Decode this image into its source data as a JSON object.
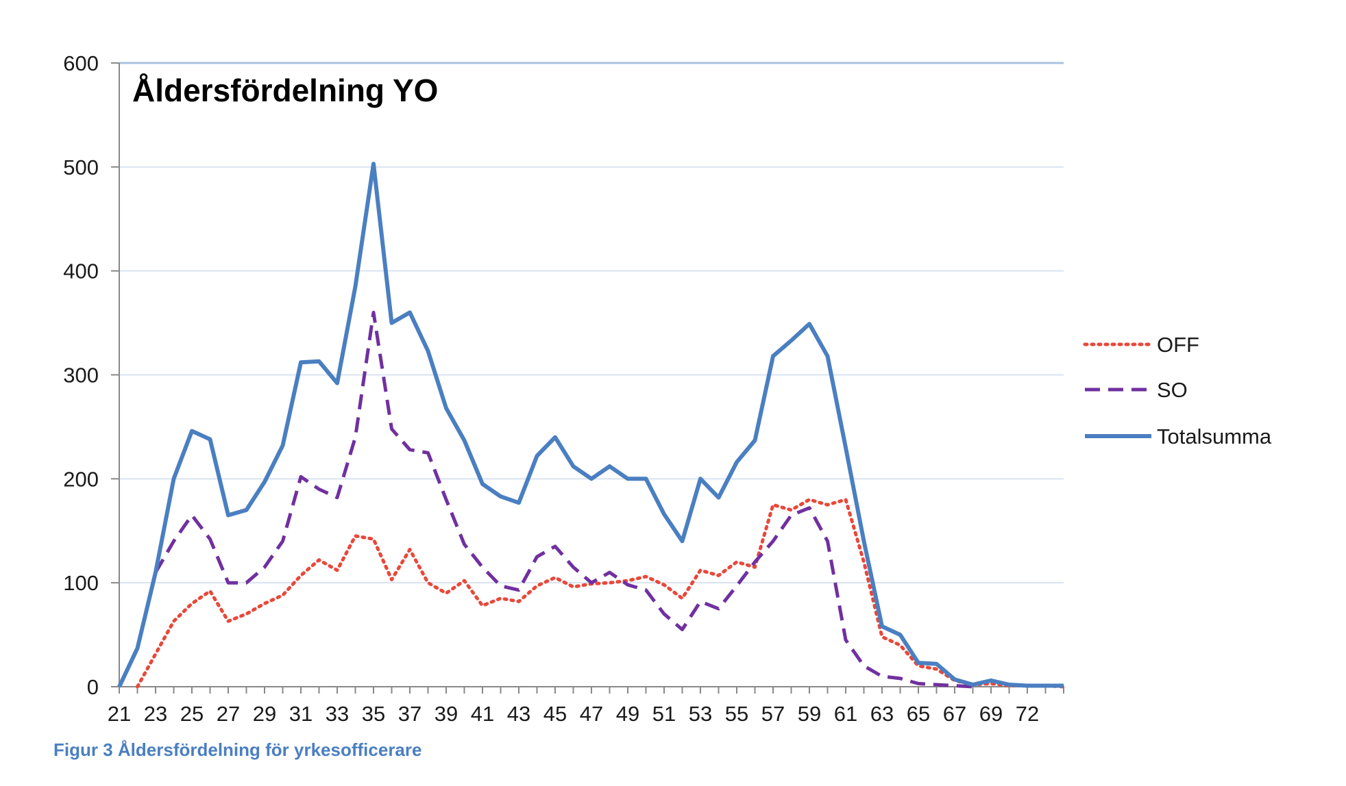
{
  "caption": "Figur 3 Åldersfördelning för yrkesofficerare",
  "chart_data": {
    "type": "line",
    "title": "Åldersfördelning YO",
    "xlabel": "",
    "ylabel": "",
    "ylim": [
      0,
      600
    ],
    "yticks": [
      0,
      100,
      200,
      300,
      400,
      500,
      600
    ],
    "xlim": [
      21,
      73
    ],
    "x_tick_labels": [
      "21",
      "23",
      "25",
      "27",
      "29",
      "31",
      "33",
      "35",
      "37",
      "39",
      "41",
      "43",
      "45",
      "47",
      "49",
      "51",
      "53",
      "55",
      "57",
      "59",
      "61",
      "63",
      "65",
      "67",
      "69",
      "72"
    ],
    "grid": true,
    "legend_position": "right",
    "series": [
      {
        "name": "OFF",
        "color": "#e8483a",
        "style": "dotted",
        "x": [
          22,
          24,
          25,
          26,
          27,
          28,
          29,
          30,
          31,
          32,
          33,
          34,
          35,
          36,
          37,
          38,
          39,
          40,
          41,
          42,
          43,
          44,
          45,
          46,
          47,
          48,
          49,
          50,
          51,
          52,
          53,
          54,
          55,
          56,
          57,
          58,
          59,
          60,
          61,
          62,
          63,
          64,
          65,
          66,
          67,
          68,
          69,
          70,
          71,
          72,
          73
        ],
        "values": [
          0,
          63,
          80,
          92,
          63,
          70,
          80,
          88,
          107,
          122,
          112,
          145,
          142,
          103,
          132,
          100,
          90,
          102,
          78,
          85,
          82,
          97,
          105,
          96,
          99,
          100,
          102,
          106,
          98,
          85,
          112,
          107,
          120,
          115,
          175,
          170,
          180,
          175,
          180,
          120,
          48,
          40,
          20,
          17,
          6,
          2,
          3,
          1,
          1,
          1,
          0
        ]
      },
      {
        "name": "SO",
        "color": "#7030a0",
        "style": "dashed",
        "x": [
          23,
          24,
          25,
          26,
          27,
          28,
          29,
          30,
          31,
          32,
          33,
          34,
          35,
          36,
          37,
          38,
          39,
          40,
          41,
          42,
          43,
          44,
          45,
          46,
          47,
          48,
          49,
          50,
          51,
          52,
          53,
          54,
          55,
          56,
          57,
          58,
          59,
          60,
          61,
          62,
          63,
          64,
          65,
          66,
          67,
          68
        ],
        "values": [
          110,
          140,
          165,
          142,
          100,
          100,
          115,
          140,
          202,
          190,
          182,
          240,
          360,
          248,
          228,
          225,
          180,
          137,
          115,
          97,
          93,
          125,
          135,
          115,
          100,
          110,
          98,
          93,
          70,
          55,
          82,
          75,
          97,
          120,
          140,
          165,
          172,
          140,
          45,
          20,
          10,
          8,
          3,
          2,
          1,
          0
        ]
      },
      {
        "name": "Totalsumma",
        "color": "#4a7fc1",
        "style": "solid",
        "x": [
          21,
          22,
          23,
          24,
          25,
          26,
          27,
          28,
          29,
          30,
          31,
          32,
          33,
          34,
          35,
          36,
          37,
          38,
          39,
          40,
          41,
          42,
          43,
          44,
          45,
          46,
          47,
          48,
          49,
          50,
          51,
          52,
          53,
          54,
          55,
          56,
          57,
          58,
          59,
          60,
          61,
          62,
          63,
          64,
          65,
          66,
          67,
          68,
          69,
          70,
          71,
          72,
          73
        ],
        "values": [
          0,
          37,
          110,
          200,
          246,
          238,
          165,
          170,
          197,
          232,
          312,
          313,
          292,
          385,
          503,
          350,
          360,
          323,
          268,
          237,
          195,
          183,
          177,
          222,
          240,
          212,
          200,
          212,
          200,
          200,
          166,
          140,
          200,
          182,
          216,
          237,
          318,
          333,
          349,
          318,
          230,
          140,
          58,
          50,
          23,
          22,
          7,
          2,
          6,
          2,
          1,
          1,
          1
        ]
      }
    ]
  }
}
